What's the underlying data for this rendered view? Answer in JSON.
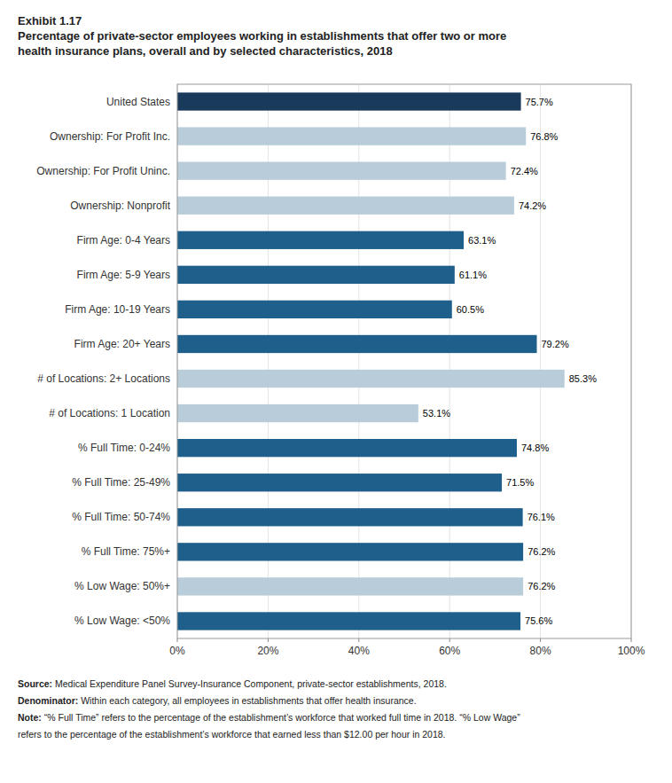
{
  "chart_data": {
    "type": "bar",
    "orientation": "horizontal",
    "title": "Exhibit 1.17",
    "subtitle": [
      "Percentage of private-sector employees working in establishments that offer two or more",
      "health insurance plans, overall and by selected characteristics, 2018"
    ],
    "categories": [
      "% Low Wage: <50%",
      "% Low Wage: 50%+",
      "% Full Time: 75%+",
      "% Full Time: 50-74%",
      "% Full Time: 25-49%",
      "% Full Time: 0-24%",
      "# of Locations: 1 Location",
      "# of Locations: 2+ Locations",
      "Firm Age: 20+ Years",
      "Firm Age: 10-19 Years",
      "Firm Age: 5-9 Years",
      "Firm Age: 0-4 Years",
      "Ownership: Nonprofit",
      "Ownership: For Profit Uninc.",
      "Ownership: For Profit Inc.",
      "United States"
    ],
    "values": [
      75.6,
      76.2,
      76.2,
      76.1,
      71.5,
      74.8,
      53.1,
      85.3,
      79.2,
      60.5,
      61.1,
      63.1,
      74.2,
      72.4,
      76.8,
      75.7
    ],
    "value_labels": [
      "75.6%",
      "76.2%",
      "76.2%",
      "76.1%",
      "71.5%",
      "74.8%",
      "53.1%",
      "85.3%",
      "79.2%",
      "60.5%",
      "61.1%",
      "63.1%",
      "74.2%",
      "72.4%",
      "76.8%",
      "75.7%"
    ],
    "data_labels": true,
    "colors": [
      "#1f5f8b",
      "#b8cdd9",
      "#1f5f8b",
      "#1f5f8b",
      "#1f5f8b",
      "#1f5f8b",
      "#b8cdd9",
      "#b8cdd9",
      "#1f5f8b",
      "#1f5f8b",
      "#1f5f8b",
      "#1f5f8b",
      "#b8cdd9",
      "#b8cdd9",
      "#b8cdd9",
      "#1a3a5c"
    ],
    "xlim": [
      0,
      100
    ],
    "xticks": [
      {
        "value": 0,
        "label": "0%"
      },
      {
        "value": 20,
        "label": "20%"
      },
      {
        "value": 40,
        "label": "40%"
      },
      {
        "value": 60,
        "label": "60%"
      },
      {
        "value": 80,
        "label": "80%"
      },
      {
        "value": 100,
        "label": "100%"
      }
    ],
    "grid": true,
    "annotations": [
      {
        "label": "Source:",
        "text": " Medical Expenditure Panel Survey-Insurance Component, private-sector establishments, 2018."
      },
      {
        "label": "Denominator:",
        "text": " Within each category, all employees in establishments that offer health insurance."
      },
      {
        "label": "Note:",
        "text": " “% Full Time” refers to the percentage of the establishment’s workforce that worked full time in 2018. “% Low Wage”"
      },
      {
        "text": "refers to the percentage of the establishment’s workforce that earned less than $12.00 per hour in 2018."
      }
    ]
  }
}
